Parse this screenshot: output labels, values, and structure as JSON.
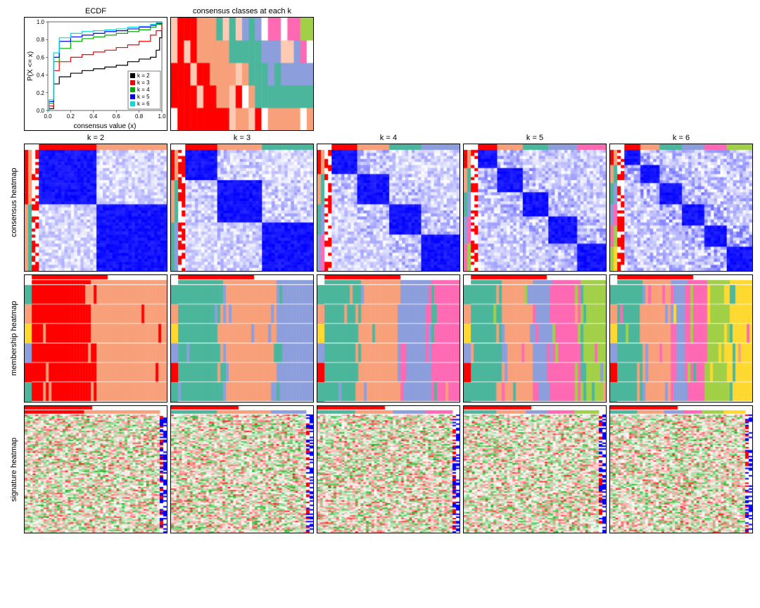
{
  "titles": {
    "ecdf": "ECDF",
    "tracking": "consensus classes at each k",
    "k2": "k = 2",
    "k3": "k = 3",
    "k4": "k = 4",
    "k5": "k = 5",
    "k6": "k = 6"
  },
  "row_labels": {
    "consensus": "consensus heatmap",
    "membership": "membership heatmap",
    "signature": "signature heatmap"
  },
  "ecdf": {
    "xlabel": "consensus value (x)",
    "ylabel": "P(X <= x)",
    "xlim": [
      0,
      1
    ],
    "ylim": [
      0,
      1
    ],
    "xtick_step": 0.2,
    "ytick_step": 0.2,
    "label_fontsize": 10,
    "tick_fontsize": 8,
    "grid_color": "#000000",
    "curves": [
      {
        "k": 2,
        "color": "#000000",
        "points": [
          [
            0,
            0
          ],
          [
            0.01,
            0.02
          ],
          [
            0.05,
            0.3
          ],
          [
            0.1,
            0.38
          ],
          [
            0.2,
            0.42
          ],
          [
            0.3,
            0.45
          ],
          [
            0.4,
            0.47
          ],
          [
            0.5,
            0.49
          ],
          [
            0.6,
            0.51
          ],
          [
            0.7,
            0.55
          ],
          [
            0.8,
            0.58
          ],
          [
            0.9,
            0.6
          ],
          [
            0.95,
            0.68
          ],
          [
            0.98,
            0.82
          ],
          [
            1,
            1
          ]
        ]
      },
      {
        "k": 3,
        "color": "#ff0000",
        "points": [
          [
            0,
            0
          ],
          [
            0.01,
            0.05
          ],
          [
            0.05,
            0.45
          ],
          [
            0.1,
            0.55
          ],
          [
            0.2,
            0.6
          ],
          [
            0.3,
            0.63
          ],
          [
            0.4,
            0.66
          ],
          [
            0.5,
            0.68
          ],
          [
            0.6,
            0.71
          ],
          [
            0.7,
            0.74
          ],
          [
            0.8,
            0.78
          ],
          [
            0.9,
            0.85
          ],
          [
            0.95,
            0.9
          ],
          [
            1,
            1
          ]
        ]
      },
      {
        "k": 4,
        "color": "#00aa00",
        "points": [
          [
            0,
            0
          ],
          [
            0.01,
            0.08
          ],
          [
            0.05,
            0.55
          ],
          [
            0.1,
            0.7
          ],
          [
            0.2,
            0.78
          ],
          [
            0.3,
            0.81
          ],
          [
            0.4,
            0.83
          ],
          [
            0.5,
            0.85
          ],
          [
            0.6,
            0.87
          ],
          [
            0.7,
            0.89
          ],
          [
            0.8,
            0.91
          ],
          [
            0.9,
            0.94
          ],
          [
            0.95,
            0.97
          ],
          [
            1,
            1
          ]
        ]
      },
      {
        "k": 5,
        "color": "#0000ff",
        "points": [
          [
            0,
            0
          ],
          [
            0.01,
            0.1
          ],
          [
            0.05,
            0.6
          ],
          [
            0.1,
            0.78
          ],
          [
            0.2,
            0.83
          ],
          [
            0.3,
            0.85
          ],
          [
            0.4,
            0.87
          ],
          [
            0.5,
            0.89
          ],
          [
            0.6,
            0.9
          ],
          [
            0.7,
            0.92
          ],
          [
            0.8,
            0.94
          ],
          [
            0.9,
            0.96
          ],
          [
            0.95,
            0.98
          ],
          [
            1,
            1
          ]
        ]
      },
      {
        "k": 6,
        "color": "#00dddd",
        "points": [
          [
            0,
            0
          ],
          [
            0.01,
            0.12
          ],
          [
            0.05,
            0.65
          ],
          [
            0.1,
            0.82
          ],
          [
            0.2,
            0.87
          ],
          [
            0.3,
            0.89
          ],
          [
            0.4,
            0.9
          ],
          [
            0.5,
            0.91
          ],
          [
            0.6,
            0.92
          ],
          [
            0.7,
            0.94
          ],
          [
            0.8,
            0.95
          ],
          [
            0.9,
            0.97
          ],
          [
            0.95,
            0.99
          ],
          [
            1,
            1
          ]
        ]
      }
    ],
    "legend": [
      {
        "label": "k = 2",
        "color": "#000000"
      },
      {
        "label": "k = 3",
        "color": "#ff0000"
      },
      {
        "label": "k = 4",
        "color": "#00aa00"
      },
      {
        "label": "k = 5",
        "color": "#0000ff"
      },
      {
        "label": "k = 6",
        "color": "#00dddd"
      }
    ]
  },
  "cluster_palette": [
    "#ff0000",
    "#f8a07a",
    "#4bb69c",
    "#8c9edc",
    "#ff69b4",
    "#a1d047",
    "#ffd92f",
    "#b07aa1"
  ],
  "consensus": {
    "low_color": "#ffffff",
    "high_color": "#0000ff",
    "n_samples": 40,
    "block_counts": {
      "2": [
        18,
        22
      ],
      "3": [
        10,
        14,
        16
      ],
      "4": [
        8,
        10,
        10,
        12
      ],
      "5": [
        6,
        8,
        8,
        9,
        9
      ],
      "6": [
        5,
        6,
        7,
        7,
        7,
        8
      ]
    },
    "noise_level": {
      "2": 0.25,
      "3": 0.3,
      "4": 0.35,
      "5": 0.4,
      "6": 0.45
    }
  },
  "membership": {
    "n_samples": 48,
    "n_runs": 6,
    "assignments": {
      "2": {
        "classes": [
          0,
          1
        ],
        "breaks": [
          0.42
        ]
      },
      "3": {
        "classes": [
          2,
          1,
          3
        ],
        "breaks": [
          0.32,
          0.72
        ]
      },
      "4": {
        "classes": [
          2,
          1,
          3,
          4
        ],
        "breaks": [
          0.26,
          0.55,
          0.78
        ]
      },
      "5": {
        "classes": [
          2,
          1,
          3,
          4,
          5
        ],
        "breaks": [
          0.22,
          0.44,
          0.6,
          0.8
        ]
      },
      "6": {
        "classes": [
          2,
          1,
          3,
          4,
          5,
          6
        ],
        "breaks": [
          0.18,
          0.38,
          0.52,
          0.66,
          0.82
        ]
      }
    },
    "top_bar_color": "#ff0000",
    "side_colors": [
      "#4bb69c",
      "#f8a07a",
      "#ffd92f",
      "#8c9edc",
      "#ff0000"
    ]
  },
  "signature": {
    "low_color": "#00aa00",
    "mid_color": "#ffffff",
    "high_color": "#ff0000",
    "n_cols": 50,
    "n_rows": 80,
    "side_colors": [
      "#ff0000",
      "#0000ff",
      "#ffffff"
    ]
  },
  "tracking": {
    "n_samples": 22,
    "n_k": 5
  }
}
